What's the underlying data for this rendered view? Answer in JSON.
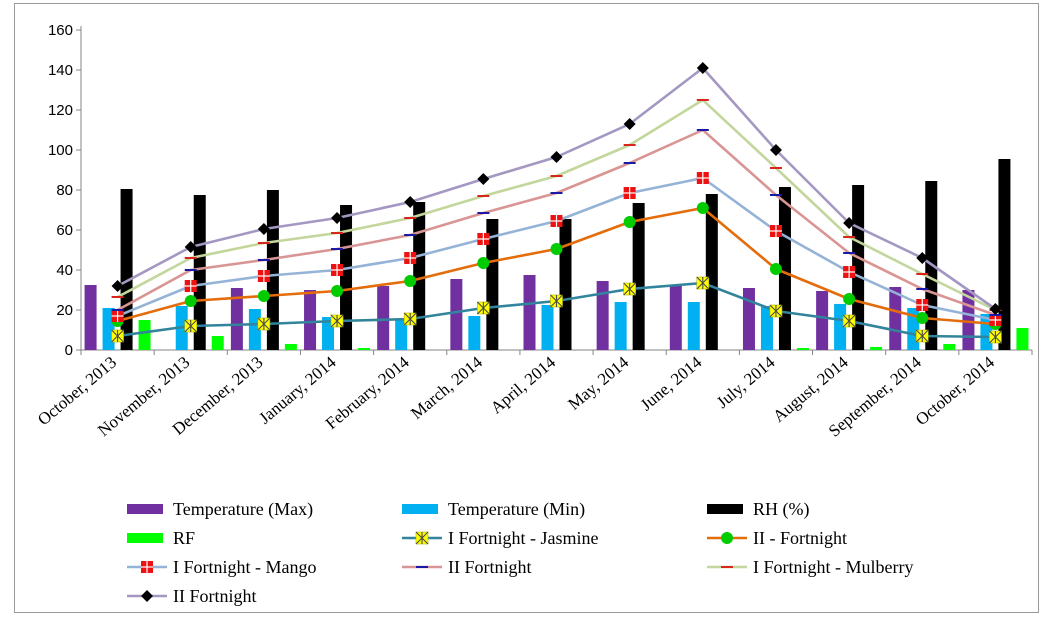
{
  "chart_data": {
    "type": "bar",
    "categories": [
      "October, 2013",
      "November, 2013",
      "December, 2013",
      "January, 2014",
      "February, 2014",
      "March, 2014",
      "April, 2014",
      "May, 2014",
      "June, 2014",
      "July, 2014",
      "August, 2014",
      "September, 2014",
      "October, 2014"
    ],
    "ylim": [
      0,
      160
    ],
    "yticks": [
      0,
      20,
      40,
      60,
      80,
      100,
      120,
      140,
      160
    ],
    "grid": false,
    "legend_position": "bottom",
    "bar_series": [
      {
        "name": "Temperature (Max)",
        "color": "#7030a0",
        "values": [
          32.5,
          null,
          31,
          30,
          32,
          35.5,
          37.5,
          34.5,
          32,
          31,
          29.5,
          31.5,
          30
        ]
      },
      {
        "name": "Temperature (Min)",
        "color": "#00b0f0",
        "values": [
          21,
          22,
          20.5,
          16.5,
          15,
          17,
          22.5,
          24,
          24,
          22,
          23,
          21,
          18
        ]
      },
      {
        "name": "RH (%)",
        "color": "#000000",
        "values": [
          80.5,
          77.5,
          80,
          72.5,
          74,
          65.5,
          65.5,
          73.5,
          78,
          81.5,
          82.5,
          84.5,
          95.5
        ]
      },
      {
        "name": "RF",
        "color": "#00ff00",
        "values": [
          15,
          7,
          3,
          1,
          0,
          0,
          0,
          0,
          0,
          1,
          1.5,
          3,
          11
        ]
      }
    ],
    "line_series": [
      {
        "name": "I Fortnight - Jasmine",
        "color": "#31849b",
        "marker": "star-square",
        "marker_color": "#ffff00",
        "values": [
          7,
          12,
          13,
          14.5,
          15.5,
          21,
          24.5,
          30.5,
          33.5,
          19.5,
          14.5,
          7,
          6.5
        ]
      },
      {
        "name": "II - Fortnight",
        "color": "#e46c0a",
        "marker": "circle",
        "marker_color": "#00cc00",
        "values": [
          14.5,
          24.5,
          27,
          29.5,
          34.5,
          43.5,
          50.5,
          64,
          71,
          40.5,
          25.5,
          16,
          13
        ]
      },
      {
        "name": "I Fortnight - Mango",
        "color": "#95b3d7",
        "marker": "square",
        "marker_color": "#ee1111",
        "values": [
          17,
          32,
          37,
          40,
          46,
          55.5,
          64.5,
          78.5,
          86,
          59.5,
          39,
          22.5,
          15
        ]
      },
      {
        "name": "II Fortnight",
        "color": "#d99594",
        "marker": "dash",
        "marker_color": "#1a1aa6",
        "values": [
          20,
          40,
          45,
          50.5,
          57.5,
          68.5,
          78.5,
          93.5,
          110,
          77.5,
          48.5,
          30.5,
          17.5
        ]
      },
      {
        "name": "I Fortnight - Mulberry",
        "color": "#c3d69b",
        "marker": "dash",
        "marker_color": "#d9261c",
        "values": [
          26.5,
          46,
          53.5,
          58.5,
          66,
          77,
          87,
          102.5,
          125,
          91,
          56.5,
          38,
          20
        ]
      },
      {
        "name": "II Fortnight",
        "color": "#a497c2",
        "marker": "diamond",
        "marker_color": "#000000",
        "values": [
          32,
          51.5,
          60.5,
          66,
          74,
          85.5,
          96.5,
          113,
          141,
          100,
          63.5,
          46,
          20.5
        ]
      }
    ]
  }
}
